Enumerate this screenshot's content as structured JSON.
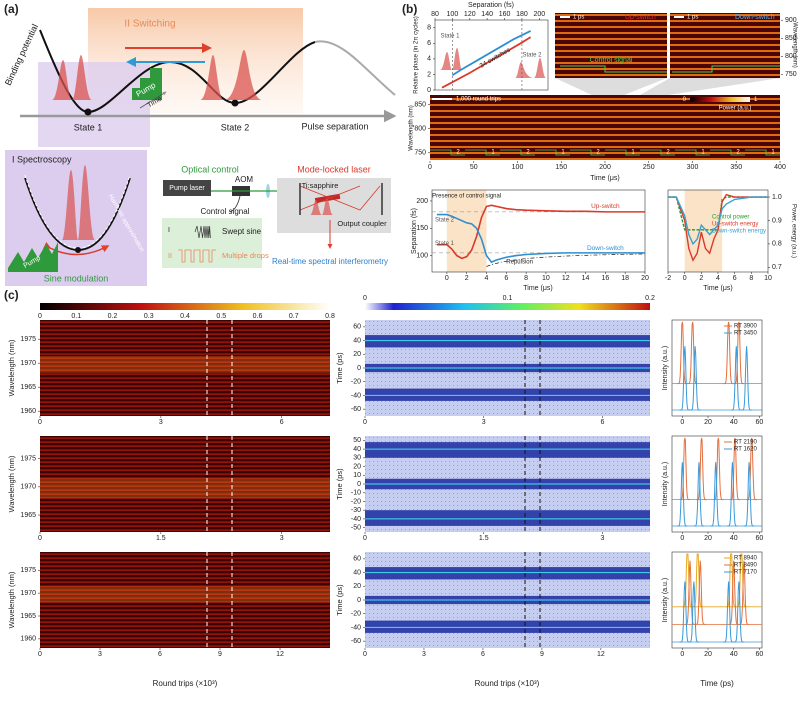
{
  "panel_a": {
    "label": "(a)",
    "binding_potential": "Binding potential",
    "switching": "II Switching",
    "pump_top": "Pump",
    "time": "Time",
    "state1": "State 1",
    "state2": "State 2",
    "pulse_separation": "Pulse separation",
    "spectroscopy": "I Spectroscopy",
    "harmonic": "Harmonic approximation",
    "pump_bottom": "Pump",
    "sine_modulation": "Sine modulation",
    "optical_control": "Optical control",
    "pump_laser": "Pump laser",
    "aom": "AOM",
    "control_signal": "Control signal",
    "mode_i": "I",
    "swept_sine": "Swept sine",
    "mode_ii": "II",
    "multiple_drops": "Multiple drops",
    "mode_locked": "Mode-locked laser",
    "ti_sapphire": "Ti:sapphire",
    "output_coupler": "Output coupler",
    "interferometry": "Real-time spectral interferometry"
  },
  "panel_b": {
    "label": "(b)",
    "inset": {
      "xlabel": "Separation (fs)",
      "xlim": [
        80,
        210
      ],
      "xticks": [
        80,
        100,
        120,
        140,
        160,
        180,
        200
      ],
      "ylabel": "Relative phase (in 2π cycles)",
      "ylim": [
        0,
        9
      ],
      "yticks": [
        0,
        2,
        4,
        6,
        8
      ],
      "state1": "State 1",
      "state2": "State 2",
      "switches": "34 switches",
      "series": [
        {
          "color": "#d93a2b",
          "x": [
            88,
            100,
            120,
            140,
            160,
            180,
            190
          ],
          "values": [
            0.3,
            1,
            2.2,
            3.5,
            4.8,
            6.1,
            6.8
          ]
        },
        {
          "color": "#2f8fd0",
          "x": [
            190,
            170,
            150,
            130,
            110,
            100
          ],
          "values": [
            7.6,
            6.5,
            5.2,
            3.9,
            2.6,
            1.9
          ]
        }
      ]
    },
    "spectrograms": {
      "scale_up": "1 ps",
      "up": "Up-switch",
      "scale_down": "1 ps",
      "down": "Down-switch",
      "control": "Control signal",
      "ylabel": "Wavelength (nm)",
      "ylim": [
        740,
        920
      ],
      "yticks": [
        750,
        800,
        850,
        900
      ]
    },
    "strip": {
      "scale": "1,000 round trips",
      "ylabel": "Wavelength (nm)",
      "ylim": [
        735,
        870
      ],
      "yticks": [
        750,
        800,
        850
      ],
      "xlabel": "Time (μs)",
      "xlim": [
        0,
        400
      ],
      "xticks": [
        0,
        50,
        100,
        150,
        200,
        250,
        300,
        350,
        400
      ],
      "colorbar_ticks": [
        0,
        1
      ],
      "colorbar_label": "Power (a.u.)",
      "drops": [
        2,
        1,
        2,
        1,
        2,
        1,
        2,
        1,
        2,
        1
      ]
    },
    "separation": {
      "ylabel": "Separation (fs)",
      "ylim": [
        70,
        220
      ],
      "yticks": [
        100,
        150,
        200
      ],
      "xlabel": "Time (μs)",
      "xlim": [
        -1.5,
        20
      ],
      "xticks": [
        0,
        2,
        4,
        6,
        8,
        10,
        12,
        14,
        16,
        18,
        20
      ],
      "presence": "Presence of control signal",
      "state2": "State 2",
      "state1": "State 1",
      "repulsion": "Repulsion",
      "x": [
        -1,
        0,
        0.5,
        1,
        1.5,
        2,
        2.5,
        3,
        3.5,
        4,
        4.5,
        5,
        6,
        7,
        8,
        10,
        12,
        14,
        16,
        18,
        20
      ],
      "series": [
        {
          "name": "Up-switch",
          "color": "#d93a2b",
          "values": [
            120,
            120,
            112,
            100,
            95,
            98,
            110,
            135,
            170,
            190,
            192,
            190,
            186,
            184,
            183,
            182,
            181,
            181,
            180,
            180,
            180
          ]
        },
        {
          "name": "Down-switch",
          "color": "#2f8fd0",
          "values": [
            175,
            175,
            172,
            168,
            164,
            160,
            158,
            150,
            130,
            100,
            88,
            92,
            97,
            100,
            102,
            104,
            105,
            105,
            105,
            105,
            105
          ]
        }
      ]
    },
    "energy": {
      "ylabel": "Power, energy (a.u.)",
      "ylim": [
        0.68,
        1.03
      ],
      "yticks": [
        0.7,
        0.8,
        0.9,
        {
          "value": 1,
          "label": "1.0"
        }
      ],
      "xlabel": "Time (μs)",
      "xlim": [
        -2,
        10
      ],
      "xticks": [
        -2,
        0,
        2,
        4,
        6,
        8,
        10
      ],
      "x": [
        -2,
        -1,
        0,
        0.5,
        1,
        1.5,
        2,
        2.5,
        3,
        3.5,
        4,
        4.5,
        5,
        6,
        8,
        10
      ],
      "series": [
        {
          "name": "Control power",
          "color": "#2a9a2a",
          "values": [
            1,
            1,
            0.86,
            0.86,
            0.86,
            0.86,
            0.86,
            0.86,
            0.86,
            0.86,
            0.86,
            0.99,
            1,
            1,
            1,
            1
          ]
        },
        {
          "name": "Up-switch energy",
          "color": "#d93a2b",
          "values": [
            1,
            1,
            0.9,
            0.78,
            0.73,
            0.76,
            0.85,
            0.78,
            0.76,
            0.82,
            0.86,
            0.98,
            1.01,
            1,
            1,
            1
          ]
        },
        {
          "name": "Down-switch energy",
          "color": "#3aa0d0",
          "values": [
            1,
            1,
            0.92,
            0.84,
            0.8,
            0.82,
            0.88,
            0.86,
            0.84,
            0.86,
            0.88,
            0.95,
            0.97,
            0.99,
            1,
            1
          ]
        }
      ]
    }
  },
  "panel_c": {
    "label": "(c)",
    "colorbar1_ticks": [
      0,
      0.1,
      0.2,
      0.3,
      0.4,
      0.5,
      0.6,
      0.7,
      0.8
    ],
    "colorbar2_ticks": [
      0,
      0.1,
      0.2
    ],
    "wavelength_label": "Wavelength (nm)",
    "time_label": "Time (ps)",
    "intensity_label": "Intensity (a.u.)",
    "round_trips_left": "Round trips (×10³)",
    "round_trips_mid": "Round trips (×10³)",
    "trace_xlabel": "Time (ps)",
    "rows": [
      {
        "xlim": [
          0,
          7.2
        ],
        "xticks": [
          0,
          3,
          6
        ],
        "wl_ylim": [
          1959,
          1979
        ],
        "wl_yticks": [
          1960,
          1965,
          1970,
          1975
        ],
        "t_ylim": [
          -70,
          70
        ],
        "t_yticks": [
          -60,
          -40,
          -20,
          0,
          20,
          40,
          60
        ],
        "trace_xlim": [
          -8,
          62
        ],
        "trace_xticks": [
          0,
          20,
          40,
          60
        ],
        "traces": [
          {
            "name": "RT 3900",
            "color": "#e4703e",
            "peaks": [
              0,
              8,
              36,
              44
            ]
          },
          {
            "name": "RT 3450",
            "color": "#3a9ad9",
            "peaks": [
              2,
              10,
              42,
              50
            ]
          }
        ]
      },
      {
        "xlim": [
          0,
          3.6
        ],
        "xticks": [
          0,
          1.5,
          3
        ],
        "wl_ylim": [
          1962,
          1979
        ],
        "wl_yticks": [
          1965,
          1970,
          1975
        ],
        "t_ylim": [
          -55,
          55
        ],
        "t_yticks": [
          -50,
          -40,
          -30,
          -20,
          -10,
          0,
          10,
          20,
          30,
          40,
          50
        ],
        "trace_xlim": [
          -8,
          62
        ],
        "trace_xticks": [
          0,
          20,
          40,
          60
        ],
        "traces": [
          {
            "name": "RT 2190",
            "color": "#e4703e",
            "peaks": [
              2,
              15,
              28,
              41,
              54
            ]
          },
          {
            "name": "RT 1620",
            "color": "#3a9ad9",
            "peaks": [
              0,
              13,
              26,
              39,
              52
            ]
          }
        ]
      },
      {
        "xlim": [
          0,
          14.5
        ],
        "xticks": [
          0,
          3,
          6,
          9,
          12
        ],
        "wl_ylim": [
          1958,
          1979
        ],
        "wl_yticks": [
          1960,
          1965,
          1970,
          1975
        ],
        "t_ylim": [
          -70,
          70
        ],
        "t_yticks": [
          -60,
          -40,
          -20,
          0,
          20,
          40,
          60
        ],
        "trace_xlim": [
          -8,
          62
        ],
        "trace_xticks": [
          0,
          20,
          40,
          60
        ],
        "traces": [
          {
            "name": "RT 8940",
            "color": "#e8a822",
            "peaks": [
              4,
              12,
              38,
              46
            ]
          },
          {
            "name": "RT 8490",
            "color": "#e4703e",
            "peaks": [
              6,
              14,
              40,
              48
            ]
          },
          {
            "name": "RT 7170",
            "color": "#3a9ad9",
            "peaks": [
              2,
              9,
              36,
              44
            ]
          }
        ]
      }
    ]
  }
}
